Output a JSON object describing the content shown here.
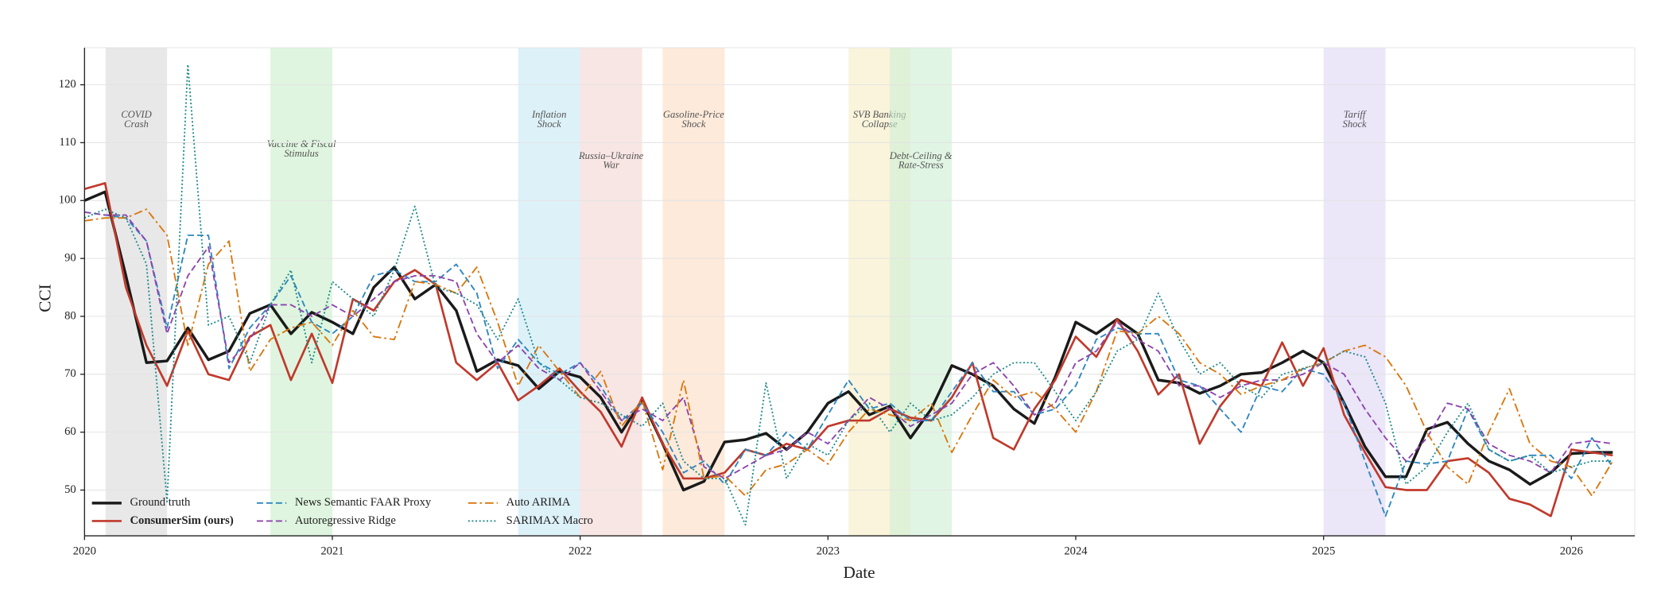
{
  "chart_data": {
    "type": "line",
    "x_label": "Date",
    "y_label": "CCI",
    "xlim": [
      2020,
      2026.256
    ],
    "ylim": [
      42.1,
      126.4
    ],
    "xticks": [
      2020,
      2021,
      2022,
      2023,
      2024,
      2025,
      2026
    ],
    "yticks": [
      50,
      60,
      70,
      80,
      90,
      100,
      110,
      120
    ],
    "grid": true,
    "legend": "lower left",
    "x": [
      2020,
      2020.083,
      2020.167,
      2020.25,
      2020.333,
      2020.417,
      2020.5,
      2020.583,
      2020.667,
      2020.75,
      2020.833,
      2020.917,
      2021,
      2021.083,
      2021.167,
      2021.25,
      2021.333,
      2021.417,
      2021.5,
      2021.583,
      2021.667,
      2021.75,
      2021.833,
      2021.917,
      2022,
      2022.083,
      2022.167,
      2022.25,
      2022.333,
      2022.417,
      2022.5,
      2022.583,
      2022.667,
      2022.75,
      2022.833,
      2022.917,
      2023,
      2023.083,
      2023.167,
      2023.25,
      2023.333,
      2023.417,
      2023.5,
      2023.583,
      2023.667,
      2023.75,
      2023.833,
      2023.917,
      2024,
      2024.083,
      2024.167,
      2024.25,
      2024.333,
      2024.417,
      2024.5,
      2024.583,
      2024.667,
      2024.75,
      2024.833,
      2024.917,
      2025,
      2025.083,
      2025.167,
      2025.25,
      2025.333,
      2025.417,
      2025.5,
      2025.583,
      2025.667,
      2025.75,
      2025.833,
      2025.917,
      2026,
      2026.083,
      2026.167
    ],
    "series": [
      {
        "name": "Ground truth",
        "color": "#1a1a1a",
        "style": "solid",
        "width": 2.6,
        "values": [
          100,
          101.5,
          87,
          72,
          72.3,
          78,
          72.5,
          74,
          80.5,
          82,
          77,
          80.7,
          79,
          77,
          85,
          88.5,
          83,
          85.5,
          81,
          70.5,
          72.5,
          71.5,
          67.5,
          70.5,
          69.5,
          66,
          60,
          65.5,
          58,
          50,
          51.5,
          58.3,
          58.7,
          59.8,
          57,
          60,
          65,
          67,
          63,
          64.5,
          59,
          64,
          71.5,
          70,
          68,
          64,
          61.5,
          69.5,
          79,
          77,
          79.5,
          77,
          69,
          68.5,
          66.7,
          68,
          70,
          70.3,
          72,
          74,
          72,
          65,
          57.5,
          52.3,
          52.3,
          60.5,
          61.7,
          58,
          55,
          53.5,
          51,
          53,
          56.3,
          56.5,
          56.5
        ]
      },
      {
        "name": "ConsumerSim (ours)",
        "color": "#c0392b",
        "style": "solid",
        "width": 2,
        "bold": true,
        "values": [
          102,
          103,
          85,
          75,
          68,
          77.5,
          70,
          69,
          76.5,
          78.5,
          69,
          77,
          68.5,
          83,
          81,
          86,
          88,
          85.5,
          72,
          69,
          72,
          65.5,
          68,
          71,
          67,
          63.5,
          57.5,
          66,
          58,
          52,
          52,
          53,
          57,
          56,
          58,
          57,
          61,
          62,
          62,
          64,
          62.5,
          62,
          66,
          72,
          59,
          57,
          64,
          69,
          76.5,
          73,
          79.5,
          74,
          66.5,
          70,
          58,
          64.5,
          69,
          68,
          75.5,
          68,
          74.5,
          63,
          56.5,
          50.5,
          50,
          50,
          55,
          55.5,
          53,
          48.5,
          47.5,
          45.5,
          57,
          56.5,
          56
        ]
      },
      {
        "name": "News Semantic FAAR Proxy",
        "color": "#2e86c1",
        "style": "dashed",
        "width": 1.4,
        "values": [
          98,
          97.5,
          97,
          93,
          78,
          94,
          94,
          71,
          78,
          82,
          87,
          79,
          77,
          80,
          87,
          88,
          86,
          86,
          89,
          84,
          71,
          76,
          72,
          70,
          72,
          68,
          62,
          65,
          60,
          53,
          55,
          51,
          57,
          56,
          60,
          57,
          63,
          69,
          64,
          65,
          62,
          62,
          67,
          72,
          67,
          67,
          63,
          64,
          68,
          76,
          78,
          77,
          77,
          69,
          68,
          64,
          60,
          68,
          67,
          71,
          70,
          65,
          55,
          45.5,
          55,
          54.5,
          55,
          64,
          57,
          55,
          56,
          56,
          52,
          59,
          54
        ]
      },
      {
        "name": "Autoregressive Ridge",
        "color": "#8e44ad",
        "style": "dashed",
        "width": 1.4,
        "values": [
          98,
          97.5,
          97.5,
          93,
          77,
          87,
          92,
          72,
          76,
          82,
          82,
          80,
          82,
          80,
          83,
          86,
          87,
          87,
          86,
          77,
          72,
          75,
          71,
          69,
          72,
          67,
          62,
          64,
          62,
          66,
          54,
          52,
          54,
          56,
          57,
          60,
          58,
          62,
          66,
          64,
          61,
          63,
          65,
          70,
          72,
          68,
          63,
          65,
          72,
          74,
          79,
          76,
          74,
          68,
          68,
          66,
          68,
          69,
          69,
          70,
          72,
          70,
          64,
          59,
          55,
          59,
          65,
          64,
          58,
          56,
          55,
          53,
          58,
          58.5,
          58
        ]
      },
      {
        "name": "Auto ARIMA",
        "color": "#d9770e",
        "style": "dashdot",
        "width": 1.4,
        "values": [
          96.5,
          97,
          97,
          98.5,
          94,
          75,
          89,
          93,
          70.5,
          76,
          78,
          79,
          75,
          81,
          76.5,
          76,
          86,
          85.5,
          84,
          88.5,
          79,
          68,
          75,
          70.5,
          66,
          70.5,
          61,
          65.5,
          53.5,
          69,
          52,
          52.5,
          49,
          53.5,
          54.5,
          57,
          54.5,
          60,
          64,
          63,
          62,
          65,
          56.5,
          63,
          69,
          66,
          67,
          64,
          60,
          67,
          77.5,
          77,
          80,
          77,
          72,
          70,
          66.5,
          68,
          69,
          71,
          72,
          74,
          75,
          73,
          68,
          60,
          54,
          51,
          60,
          67.5,
          58,
          55,
          54,
          49,
          55
        ]
      },
      {
        "name": "SARIMAX Macro",
        "color": "#1f8a8a",
        "style": "dotted",
        "width": 1.4,
        "values": [
          97,
          98.5,
          97,
          89,
          48,
          123.5,
          78.5,
          80,
          72,
          82,
          88,
          72,
          86,
          83,
          80,
          88,
          99,
          85,
          84,
          82,
          76,
          83,
          72,
          69,
          66,
          65,
          63,
          61,
          65,
          55,
          52,
          52,
          44,
          68.5,
          52,
          58,
          56,
          62,
          65,
          60,
          65,
          62,
          63,
          66,
          70,
          72,
          72,
          67,
          62,
          67,
          74,
          76,
          84,
          76,
          70,
          72,
          68,
          66,
          70,
          71,
          72,
          74,
          73,
          65,
          51,
          54,
          60,
          65,
          57,
          55,
          56,
          53,
          54,
          55,
          55
        ]
      }
    ],
    "annotations": [
      {
        "label": [
          "COVID",
          "Crash"
        ],
        "start": 2020.085,
        "end": 2020.333,
        "color": "#d9d9d9"
      },
      {
        "label": [
          "Vaccine & Fiscal",
          "Stimulus"
        ],
        "start": 2020.75,
        "end": 2021.0,
        "color": "#c9efc9"
      },
      {
        "label": [
          "Inflation",
          "Shock"
        ],
        "start": 2021.75,
        "end": 2022.0,
        "color": "#c6e7f3"
      },
      {
        "label": [
          "Russia–Ukraine",
          "War"
        ],
        "start": 2022.0,
        "end": 2022.25,
        "color": "#f3d6d2"
      },
      {
        "label": [
          "Gasoline-Price",
          "Shock"
        ],
        "start": 2022.333,
        "end": 2022.583,
        "color": "#fcdcc2"
      },
      {
        "label": [
          "SVB Banking",
          "Collapse"
        ],
        "start": 2023.083,
        "end": 2023.333,
        "color": "#f5ecc3"
      },
      {
        "label": [
          "Debt-Ceiling &",
          "Rate-Stress"
        ],
        "start": 2023.25,
        "end": 2023.5,
        "color": "#cdefd3"
      },
      {
        "label": [
          "Tariff",
          "Shock"
        ],
        "start": 2025.0,
        "end": 2025.25,
        "color": "#ddd6f4"
      }
    ]
  }
}
